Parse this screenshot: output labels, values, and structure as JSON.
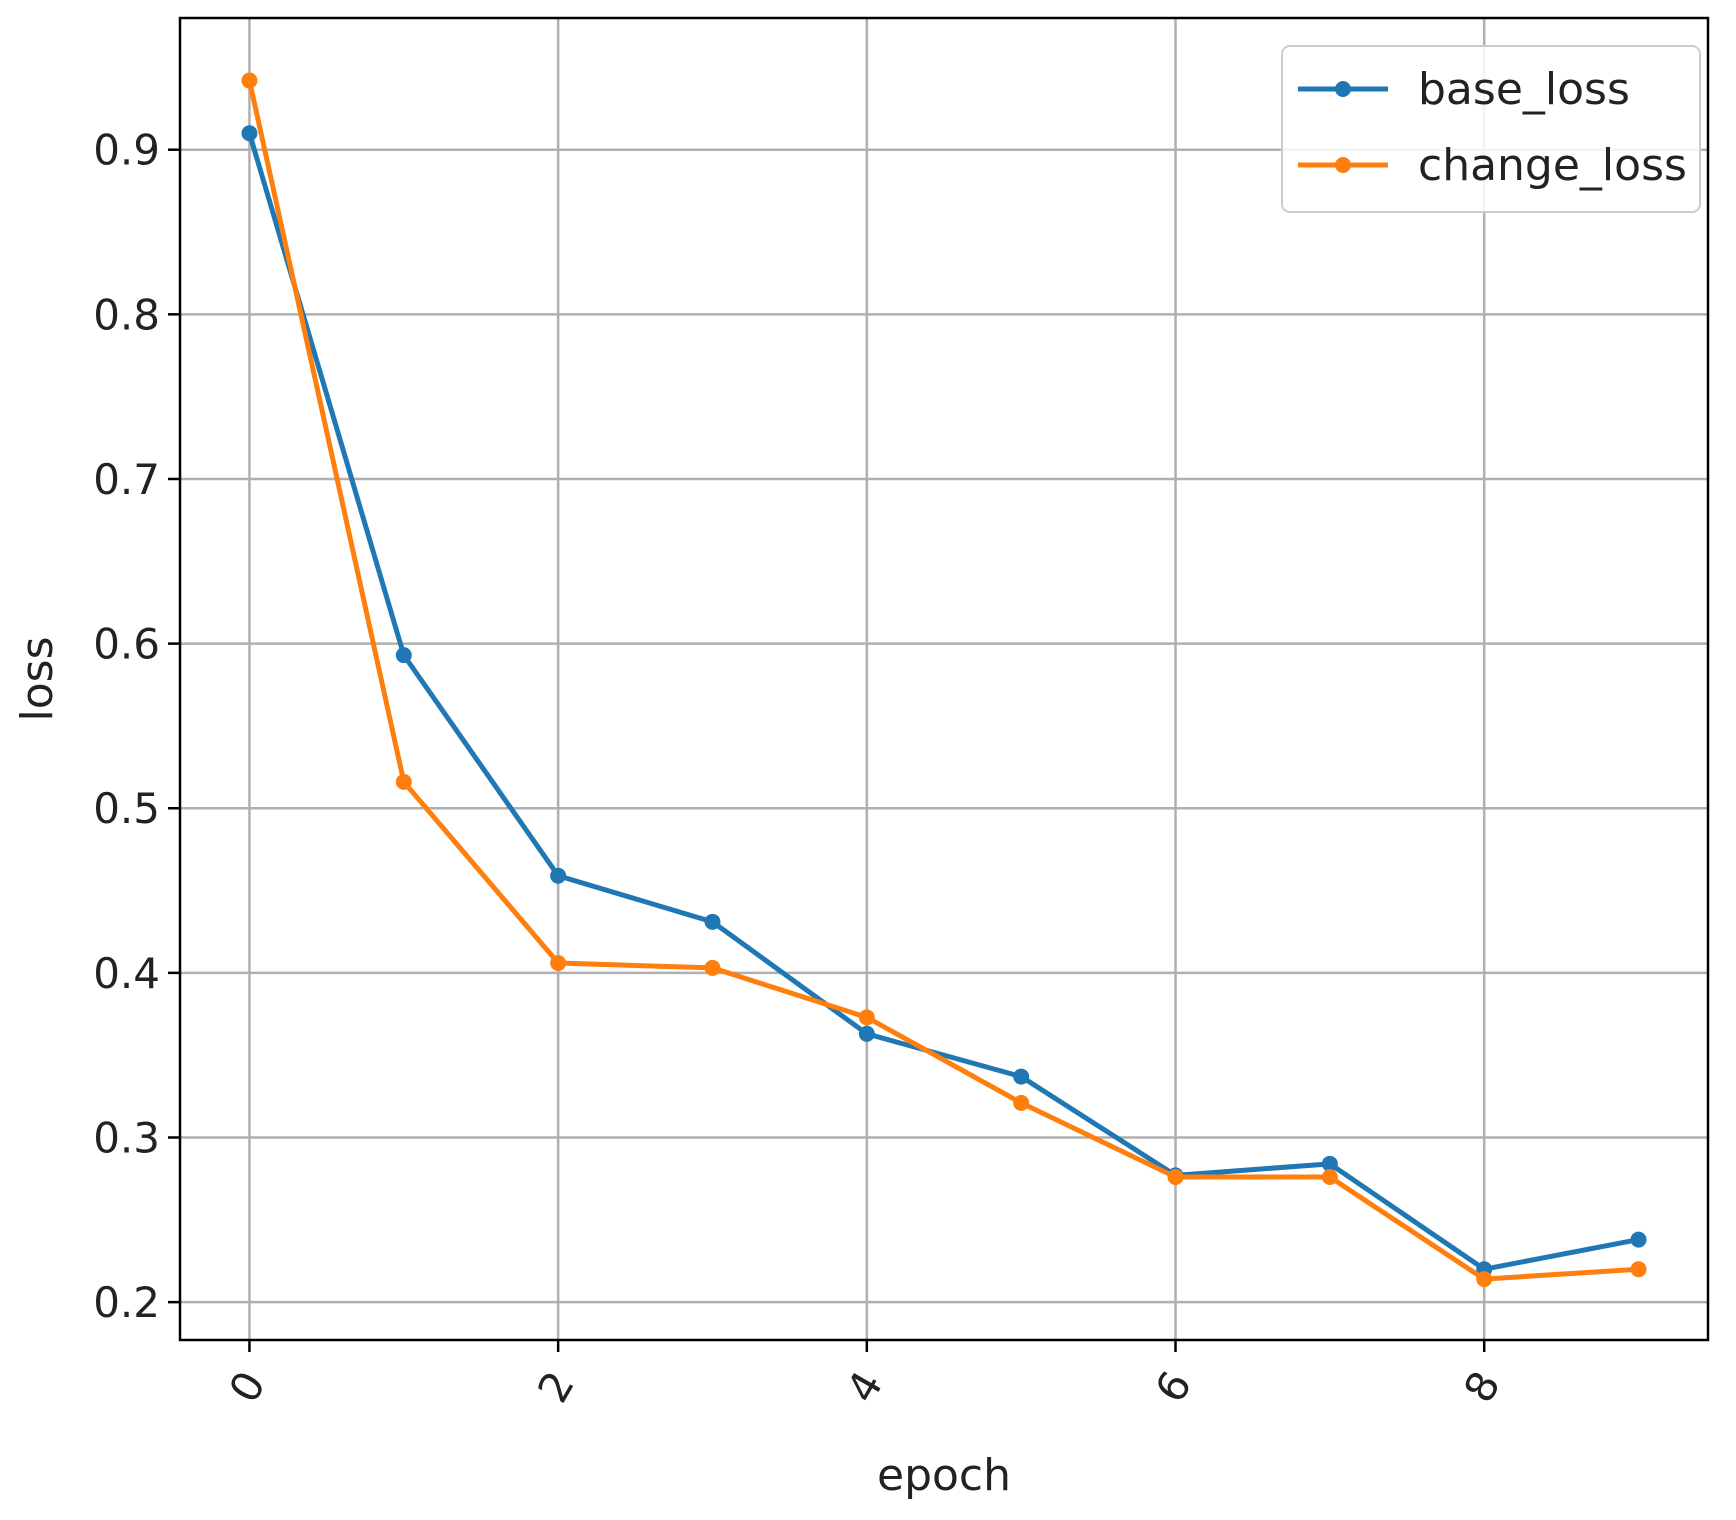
{
  "chart_data": {
    "type": "line",
    "x": [
      0,
      1,
      2,
      3,
      4,
      5,
      6,
      7,
      8,
      9
    ],
    "series": [
      {
        "name": "base_loss",
        "color": "#1f77b4",
        "values": [
          0.91,
          0.593,
          0.459,
          0.431,
          0.363,
          0.337,
          0.277,
          0.284,
          0.22,
          0.238
        ]
      },
      {
        "name": "change_loss",
        "color": "#ff7f0e",
        "values": [
          0.942,
          0.516,
          0.406,
          0.403,
          0.373,
          0.321,
          0.276,
          0.276,
          0.214,
          0.22
        ]
      }
    ],
    "xlabel": "epoch",
    "ylabel": "loss",
    "xticks": [
      0,
      2,
      4,
      6,
      8
    ],
    "xtick_labels": [
      "0",
      "2",
      "4",
      "6",
      "8"
    ],
    "yticks": [
      0.2,
      0.3,
      0.4,
      0.5,
      0.6,
      0.7,
      0.8,
      0.9
    ],
    "ytick_labels": [
      "0.2",
      "0.3",
      "0.4",
      "0.5",
      "0.6",
      "0.7",
      "0.8",
      "0.9"
    ],
    "xlim": [
      -0.45,
      9.45
    ],
    "ylim": [
      0.177,
      0.98
    ],
    "grid": true,
    "legend": "top-right",
    "xtick_rotation": "rotated",
    "marker": "point"
  }
}
